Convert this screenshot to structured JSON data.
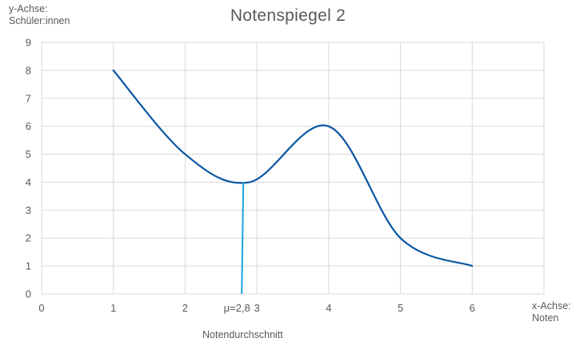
{
  "chart_data": {
    "type": "line",
    "title": "Notenspiegel 2",
    "ylabel_lines": [
      "y-Achse:",
      "Schüler:innen"
    ],
    "xlabel_lines": [
      "x-Achse:",
      "Noten"
    ],
    "xlim": [
      0,
      7
    ],
    "ylim": [
      0,
      9
    ],
    "x_ticks": [
      0,
      1,
      2,
      3,
      4,
      5,
      6
    ],
    "x_tick_labels": [
      "0",
      "1",
      "2",
      "3",
      "4",
      "5",
      "6"
    ],
    "y_ticks": [
      0,
      1,
      2,
      3,
      4,
      5,
      6,
      7,
      8,
      9
    ],
    "y_tick_labels": [
      "0",
      "1",
      "2",
      "3",
      "4",
      "5",
      "6",
      "7",
      "8",
      "9"
    ],
    "grid": true,
    "series": [
      {
        "x": [
          1,
          2,
          2.9,
          4,
          5,
          6
        ],
        "values": [
          8,
          5,
          4,
          6,
          2,
          1
        ],
        "color": "#0b57a4",
        "smooth": true
      }
    ],
    "mean_line": {
      "x": 2.8,
      "y_top": 4,
      "label": "μ=2,8",
      "color": "#1aa3dc"
    },
    "annotation": "Notendurchschnitt"
  }
}
